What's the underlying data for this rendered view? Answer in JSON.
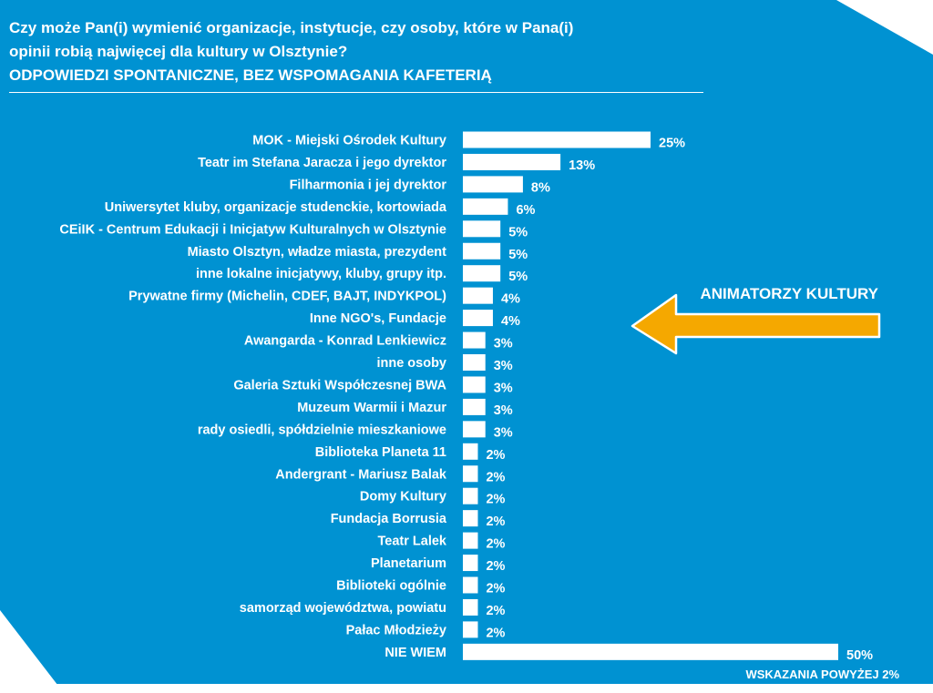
{
  "header": {
    "title_line1": "Czy może Pan(i) wymienić organizacje, instytucje, czy osoby, które w Pana(i)",
    "title_line2": "opinii robią najwięcej dla kultury w Olsztynie?",
    "subtitle": "ODPOWIEDZI SPONTANICZNE, BEZ WSPOMAGANIA KAFETERIĄ"
  },
  "callout": {
    "label": "ANIMATORZY KULTURY",
    "arrow_color": "#f5a800"
  },
  "footnote": "WSKAZANIA POWYŻEJ 2%",
  "colors": {
    "background": "#0092d2",
    "bar": "#ffffff",
    "text": "#ffffff"
  },
  "chart_data": {
    "type": "bar",
    "orientation": "horizontal",
    "categories": [
      "MOK - Miejski Ośrodek Kultury",
      "Teatr im Stefana Jaracza i jego dyrektor",
      "Filharmonia i jej dyrektor",
      "Uniwersytet kluby, organizacje studenckie, kortowiada",
      "CEiIK - Centrum Edukacji i Inicjatyw Kulturalnych w Olsztynie",
      "Miasto Olsztyn, władze miasta, prezydent",
      "inne lokalne inicjatywy, kluby, grupy itp.",
      "Prywatne firmy (Michelin, CDEF, BAJT, INDYKPOL)",
      "Inne NGO's, Fundacje",
      "Awangarda - Konrad Lenkiewicz",
      "inne osoby",
      "Galeria Sztuki Współczesnej BWA",
      "Muzeum Warmii i Mazur",
      "rady osiedli, spółdzielnie mieszkaniowe",
      "Biblioteka Planeta 11",
      "Andergrant - Mariusz Balak",
      "Domy Kultury",
      "Fundacja Borrusia",
      "Teatr Lalek",
      "Planetarium",
      "Biblioteki ogólnie",
      "samorząd województwa, powiatu",
      "Pałac Młodzieży",
      "NIE WIEM"
    ],
    "values": [
      25,
      13,
      8,
      6,
      5,
      5,
      5,
      4,
      4,
      3,
      3,
      3,
      3,
      3,
      2,
      2,
      2,
      2,
      2,
      2,
      2,
      2,
      2,
      50
    ],
    "value_labels": [
      "25%",
      "13%",
      "8%",
      "6%",
      "5%",
      "5%",
      "5%",
      "4%",
      "4%",
      "3%",
      "3%",
      "3%",
      "3%",
      "3%",
      "2%",
      "2%",
      "2%",
      "2%",
      "2%",
      "2%",
      "2%",
      "2%",
      "2%",
      "50%"
    ],
    "unit": "%",
    "xlim": [
      0,
      50
    ],
    "grid": false,
    "legend": false
  }
}
